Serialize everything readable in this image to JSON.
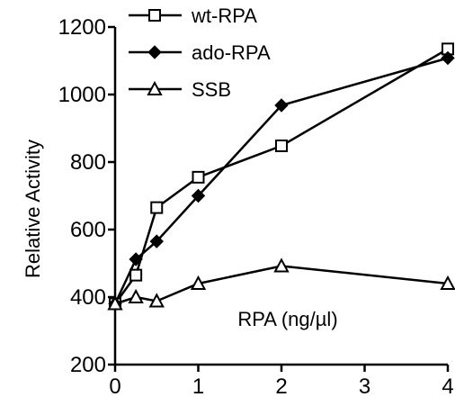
{
  "chart_data": {
    "type": "line",
    "title": "",
    "xlabel": "RPA (ng/µl)",
    "ylabel": "Relative Activity",
    "x": [
      0,
      0.25,
      0.5,
      1,
      2,
      4
    ],
    "xticks": [
      0,
      1,
      2,
      3,
      4
    ],
    "yticks": [
      200,
      400,
      600,
      800,
      1000,
      1200
    ],
    "xlim": [
      0,
      4
    ],
    "ylim": [
      200,
      1200
    ],
    "grid": false,
    "legend_position": "top-left",
    "series": [
      {
        "name": "wt-RPA",
        "marker": "open-square",
        "color": "#000000",
        "values": [
          380,
          465,
          665,
          755,
          848,
          1135
        ]
      },
      {
        "name": "ado-RPA",
        "marker": "filled-diamond",
        "color": "#000000",
        "values": [
          380,
          512,
          565,
          700,
          968,
          1108
        ]
      },
      {
        "name": "SSB",
        "marker": "open-triangle",
        "color": "#000000",
        "values": [
          380,
          400,
          388,
          440,
          492,
          440
        ]
      }
    ]
  }
}
